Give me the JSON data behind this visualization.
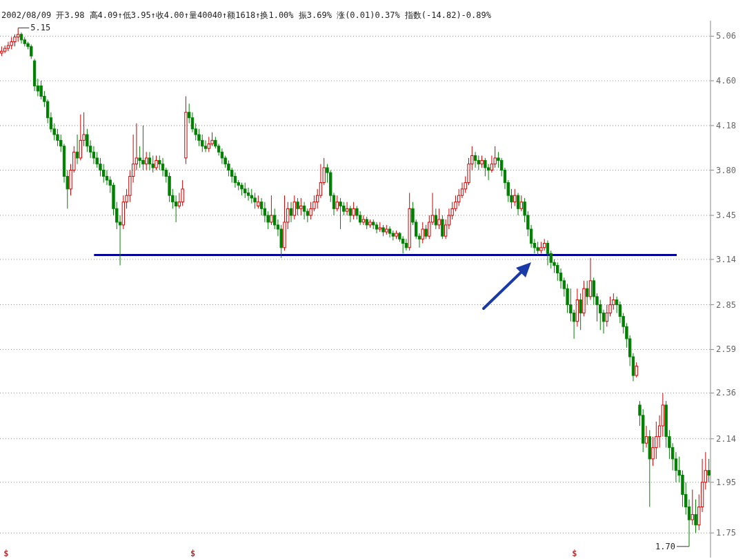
{
  "chart_data": {
    "type": "candlestick",
    "title": "2002/08/09 开3.98 高4.09↑低3.95↑收4.00↑量40040↑额1618↑换1.00% 振3.69% 涨(0.01)0.37% 指数(-14.82)-0.89%",
    "categories": [
      null,
      null,
      null,
      null,
      null,
      null,
      null,
      null,
      null,
      null,
      null,
      null,
      null,
      null,
      null,
      null,
      null,
      null,
      null,
      null,
      null,
      null,
      null,
      null,
      null,
      null,
      null,
      null,
      null,
      null,
      null,
      null,
      null,
      null,
      null,
      null,
      null,
      null,
      null,
      null,
      null,
      null,
      null,
      null,
      null,
      null,
      null,
      null,
      null,
      null,
      null,
      null,
      null,
      null,
      null,
      null,
      null,
      null,
      null,
      null,
      null,
      null,
      null,
      null,
      null,
      null,
      null,
      null,
      null,
      null,
      null,
      null,
      null,
      null,
      null,
      null,
      null,
      null,
      null,
      null,
      null,
      null,
      null,
      null,
      null,
      null,
      null,
      null,
      null,
      null,
      null,
      null,
      null,
      null,
      null,
      null,
      null,
      null,
      null,
      null,
      null,
      null,
      null,
      null,
      null,
      null,
      null,
      null,
      null,
      null,
      null,
      null,
      null,
      null,
      null,
      null,
      null,
      null,
      null,
      null,
      null,
      null,
      null,
      null,
      null,
      null,
      null,
      null,
      null,
      null,
      null,
      null,
      null,
      null,
      null,
      null,
      null,
      null,
      null,
      null,
      null,
      null,
      null,
      null,
      null,
      null,
      null,
      null,
      null,
      null,
      null,
      null,
      null,
      null,
      null,
      null,
      null,
      null,
      null,
      null,
      null,
      null,
      null,
      null,
      null,
      null,
      null,
      null,
      null,
      null,
      null,
      null,
      null,
      null,
      null,
      null,
      null,
      null,
      null,
      null,
      null,
      null,
      null,
      null,
      null,
      null,
      null,
      null,
      null,
      null,
      null,
      null,
      null,
      null,
      null,
      null,
      null,
      null,
      null,
      null,
      null,
      null,
      null,
      null,
      null,
      null,
      null,
      null,
      null,
      null,
      null,
      null,
      null,
      null,
      null,
      null
    ],
    "ohlc": [
      [
        4.88,
        4.95,
        4.85,
        4.9
      ],
      [
        4.9,
        4.96,
        4.88,
        4.93
      ],
      [
        4.93,
        5.0,
        4.9,
        4.96
      ],
      [
        4.96,
        5.05,
        4.92,
        5.0
      ],
      [
        5.0,
        5.08,
        4.95,
        5.05
      ],
      [
        5.05,
        5.15,
        5.0,
        5.08
      ],
      [
        5.08,
        5.1,
        4.98,
        5.02
      ],
      [
        5.02,
        5.05,
        4.95,
        4.98
      ],
      [
        4.98,
        5.0,
        4.92,
        4.95
      ],
      [
        4.95,
        4.97,
        4.82,
        4.85
      ],
      [
        4.8,
        4.82,
        4.5,
        4.55
      ],
      [
        4.55,
        4.62,
        4.45,
        4.5
      ],
      [
        4.55,
        4.6,
        4.42,
        4.45
      ],
      [
        4.45,
        4.5,
        4.35,
        4.4
      ],
      [
        4.4,
        4.42,
        4.2,
        4.25
      ],
      [
        4.25,
        4.3,
        4.12,
        4.15
      ],
      [
        4.15,
        4.2,
        4.05,
        4.1
      ],
      [
        4.1,
        4.15,
        4.0,
        4.05
      ],
      [
        4.05,
        4.1,
        3.95,
        4.0
      ],
      [
        4.0,
        4.02,
        3.7,
        3.75
      ],
      [
        3.75,
        3.8,
        3.5,
        3.65
      ],
      [
        3.65,
        3.85,
        3.6,
        3.8
      ],
      [
        3.8,
        4.0,
        3.78,
        3.95
      ],
      [
        3.95,
        4.1,
        3.85,
        3.9
      ],
      [
        3.9,
        4.28,
        3.88,
        4.05
      ],
      [
        4.05,
        4.3,
        4.0,
        4.1
      ],
      [
        4.1,
        4.15,
        3.95,
        4.0
      ],
      [
        4.0,
        4.05,
        3.9,
        3.95
      ],
      [
        3.95,
        4.0,
        3.85,
        3.9
      ],
      [
        3.9,
        3.95,
        3.82,
        3.85
      ],
      [
        3.85,
        3.9,
        3.75,
        3.8
      ],
      [
        3.8,
        3.85,
        3.7,
        3.75
      ],
      [
        3.75,
        3.8,
        3.68,
        3.72
      ],
      [
        3.72,
        3.75,
        3.62,
        3.68
      ],
      [
        3.68,
        3.7,
        3.45,
        3.5
      ],
      [
        3.5,
        3.55,
        3.35,
        3.4
      ],
      [
        3.4,
        3.45,
        3.1,
        3.38
      ],
      [
        3.38,
        3.6,
        3.35,
        3.55
      ],
      [
        3.55,
        3.65,
        3.5,
        3.6
      ],
      [
        3.6,
        3.8,
        3.55,
        3.75
      ],
      [
        3.75,
        4.1,
        3.7,
        3.85
      ],
      [
        3.85,
        4.2,
        3.8,
        3.9
      ],
      [
        3.9,
        4.0,
        3.82,
        3.88
      ],
      [
        3.88,
        4.18,
        3.8,
        3.85
      ],
      [
        3.85,
        3.95,
        3.8,
        3.9
      ],
      [
        3.9,
        3.95,
        3.8,
        3.85
      ],
      [
        3.85,
        3.92,
        3.78,
        3.82
      ],
      [
        3.82,
        3.92,
        3.8,
        3.88
      ],
      [
        3.88,
        3.92,
        3.8,
        3.85
      ],
      [
        3.85,
        3.9,
        3.75,
        3.8
      ],
      [
        3.8,
        3.82,
        3.7,
        3.75
      ],
      [
        3.75,
        3.78,
        3.55,
        3.6
      ],
      [
        3.6,
        3.65,
        3.5,
        3.55
      ],
      [
        3.55,
        3.6,
        3.4,
        3.52
      ],
      [
        3.52,
        3.62,
        3.5,
        3.55
      ],
      [
        3.55,
        3.72,
        3.52,
        3.65
      ],
      [
        3.9,
        4.45,
        3.85,
        4.3
      ],
      [
        4.3,
        4.38,
        4.2,
        4.25
      ],
      [
        4.25,
        4.3,
        4.12,
        4.15
      ],
      [
        4.15,
        4.2,
        4.05,
        4.1
      ],
      [
        4.1,
        4.15,
        4.0,
        4.05
      ],
      [
        4.05,
        4.1,
        3.95,
        4.0
      ],
      [
        4.0,
        4.05,
        3.95,
        3.98
      ],
      [
        3.98,
        4.08,
        3.95,
        4.02
      ],
      [
        4.02,
        4.12,
        4.0,
        4.05
      ],
      [
        4.05,
        4.08,
        3.98,
        4.0
      ],
      [
        4.0,
        4.02,
        3.92,
        3.95
      ],
      [
        3.95,
        3.98,
        3.85,
        3.9
      ],
      [
        3.9,
        3.92,
        3.82,
        3.85
      ],
      [
        3.85,
        3.88,
        3.75,
        3.8
      ],
      [
        3.8,
        3.82,
        3.7,
        3.75
      ],
      [
        3.75,
        3.78,
        3.66,
        3.7
      ],
      [
        3.7,
        3.72,
        3.64,
        3.68
      ],
      [
        3.68,
        3.7,
        3.6,
        3.65
      ],
      [
        3.65,
        3.7,
        3.58,
        3.62
      ],
      [
        3.62,
        3.66,
        3.56,
        3.6
      ],
      [
        3.6,
        3.65,
        3.54,
        3.58
      ],
      [
        3.58,
        3.62,
        3.5,
        3.55
      ],
      [
        3.52,
        3.6,
        3.5,
        3.55
      ],
      [
        3.55,
        3.58,
        3.45,
        3.5
      ],
      [
        3.5,
        3.55,
        3.4,
        3.45
      ],
      [
        3.45,
        3.48,
        3.35,
        3.4
      ],
      [
        3.4,
        3.6,
        3.38,
        3.45
      ],
      [
        3.45,
        3.5,
        3.35,
        3.38
      ],
      [
        3.38,
        3.42,
        3.3,
        3.35
      ],
      [
        3.35,
        3.38,
        3.15,
        3.22
      ],
      [
        3.22,
        3.6,
        3.2,
        3.4
      ],
      [
        3.4,
        3.55,
        3.35,
        3.5
      ],
      [
        3.5,
        3.55,
        3.4,
        3.45
      ],
      [
        3.45,
        3.6,
        3.42,
        3.55
      ],
      [
        3.55,
        3.58,
        3.45,
        3.5
      ],
      [
        3.5,
        3.58,
        3.45,
        3.52
      ],
      [
        3.52,
        3.55,
        3.42,
        3.48
      ],
      [
        3.48,
        3.5,
        3.4,
        3.45
      ],
      [
        3.45,
        3.55,
        3.42,
        3.5
      ],
      [
        3.5,
        3.6,
        3.48,
        3.55
      ],
      [
        3.55,
        3.65,
        3.5,
        3.6
      ],
      [
        3.6,
        3.85,
        3.58,
        3.7
      ],
      [
        3.7,
        3.9,
        3.68,
        3.82
      ],
      [
        3.82,
        3.85,
        3.7,
        3.78
      ],
      [
        3.78,
        3.8,
        3.55,
        3.6
      ],
      [
        3.6,
        3.62,
        3.45,
        3.5
      ],
      [
        3.5,
        3.6,
        3.48,
        3.55
      ],
      [
        3.55,
        3.58,
        3.35,
        3.52
      ],
      [
        3.52,
        3.55,
        3.45,
        3.48
      ],
      [
        3.48,
        3.55,
        3.45,
        3.5
      ],
      [
        3.5,
        3.52,
        3.4,
        3.45
      ],
      [
        3.45,
        3.55,
        3.42,
        3.5
      ],
      [
        3.5,
        3.52,
        3.42,
        3.45
      ],
      [
        3.45,
        3.48,
        3.38,
        3.4
      ],
      [
        3.4,
        3.45,
        3.38,
        3.42
      ],
      [
        3.42,
        3.44,
        3.35,
        3.38
      ],
      [
        3.38,
        3.42,
        3.36,
        3.4
      ],
      [
        3.4,
        3.42,
        3.35,
        3.38
      ],
      [
        3.38,
        3.4,
        3.32,
        3.35
      ],
      [
        3.35,
        3.4,
        3.33,
        3.36
      ],
      [
        3.36,
        3.38,
        3.3,
        3.33
      ],
      [
        3.33,
        3.38,
        3.31,
        3.35
      ],
      [
        3.35,
        3.37,
        3.29,
        3.32
      ],
      [
        3.32,
        3.34,
        3.27,
        3.3
      ],
      [
        3.3,
        3.34,
        3.28,
        3.32
      ],
      [
        3.32,
        3.33,
        3.26,
        3.28
      ],
      [
        3.28,
        3.3,
        3.18,
        3.25
      ],
      [
        3.25,
        3.28,
        3.2,
        3.22
      ],
      [
        3.22,
        3.62,
        3.2,
        3.5
      ],
      [
        3.5,
        3.55,
        3.38,
        3.4
      ],
      [
        3.4,
        3.42,
        3.28,
        3.3
      ],
      [
        3.3,
        3.32,
        3.22,
        3.28
      ],
      [
        3.28,
        3.4,
        3.25,
        3.35
      ],
      [
        3.35,
        3.38,
        3.28,
        3.3
      ],
      [
        3.3,
        3.45,
        3.28,
        3.4
      ],
      [
        3.4,
        3.62,
        3.38,
        3.45
      ],
      [
        3.45,
        3.5,
        3.35,
        3.38
      ],
      [
        3.38,
        3.5,
        3.35,
        3.42
      ],
      [
        3.42,
        3.45,
        3.28,
        3.3
      ],
      [
        3.3,
        3.42,
        3.28,
        3.38
      ],
      [
        3.38,
        3.5,
        3.35,
        3.45
      ],
      [
        3.45,
        3.55,
        3.42,
        3.5
      ],
      [
        3.5,
        3.6,
        3.48,
        3.55
      ],
      [
        3.55,
        3.65,
        3.52,
        3.6
      ],
      [
        3.6,
        3.7,
        3.58,
        3.65
      ],
      [
        3.65,
        3.75,
        3.62,
        3.7
      ],
      [
        3.7,
        3.9,
        3.68,
        3.85
      ],
      [
        3.85,
        4.0,
        3.8,
        3.92
      ],
      [
        3.92,
        3.95,
        3.82,
        3.88
      ],
      [
        3.88,
        3.92,
        3.8,
        3.85
      ],
      [
        3.85,
        3.92,
        3.82,
        3.88
      ],
      [
        3.88,
        3.9,
        3.75,
        3.82
      ],
      [
        3.82,
        3.85,
        3.72,
        3.8
      ],
      [
        3.8,
        3.92,
        3.78,
        3.85
      ],
      [
        3.85,
        4.0,
        3.82,
        3.9
      ],
      [
        3.9,
        3.95,
        3.82,
        3.88
      ],
      [
        3.88,
        3.9,
        3.75,
        3.8
      ],
      [
        3.8,
        3.82,
        3.65,
        3.7
      ],
      [
        3.7,
        3.72,
        3.55,
        3.6
      ],
      [
        3.6,
        3.65,
        3.5,
        3.55
      ],
      [
        3.55,
        3.65,
        3.52,
        3.6
      ],
      [
        3.6,
        3.62,
        3.45,
        3.5
      ],
      [
        3.5,
        3.6,
        3.48,
        3.55
      ],
      [
        3.55,
        3.58,
        3.4,
        3.45
      ],
      [
        3.45,
        3.48,
        3.3,
        3.35
      ],
      [
        3.35,
        3.38,
        3.22,
        3.25
      ],
      [
        3.25,
        3.28,
        3.18,
        3.22
      ],
      [
        3.22,
        3.26,
        3.17,
        3.2
      ],
      [
        3.2,
        3.26,
        3.18,
        3.22
      ],
      [
        3.22,
        3.28,
        3.2,
        3.25
      ],
      [
        3.25,
        3.27,
        3.1,
        3.18
      ],
      [
        3.18,
        3.2,
        3.08,
        3.12
      ],
      [
        3.12,
        3.14,
        3.05,
        3.1
      ],
      [
        3.1,
        3.12,
        3.0,
        3.05
      ],
      [
        3.05,
        3.08,
        2.95,
        3.0
      ],
      [
        3.0,
        3.02,
        2.9,
        2.95
      ],
      [
        2.95,
        2.98,
        2.8,
        2.85
      ],
      [
        2.85,
        2.95,
        2.75,
        2.8
      ],
      [
        2.8,
        2.82,
        2.65,
        2.75
      ],
      [
        2.75,
        2.95,
        2.72,
        2.88
      ],
      [
        2.88,
        2.92,
        2.7,
        2.8
      ],
      [
        2.8,
        3.0,
        2.78,
        2.95
      ],
      [
        2.95,
        3.0,
        2.85,
        2.9
      ],
      [
        2.9,
        3.15,
        2.88,
        3.0
      ],
      [
        3.0,
        3.02,
        2.85,
        2.9
      ],
      [
        2.9,
        2.92,
        2.75,
        2.85
      ],
      [
        2.85,
        2.88,
        2.7,
        2.8
      ],
      [
        2.8,
        2.82,
        2.68,
        2.75
      ],
      [
        2.75,
        2.85,
        2.72,
        2.8
      ],
      [
        2.8,
        2.9,
        2.78,
        2.85
      ],
      [
        2.85,
        2.92,
        2.82,
        2.88
      ],
      [
        2.88,
        2.9,
        2.8,
        2.85
      ],
      [
        2.85,
        2.87,
        2.74,
        2.78
      ],
      [
        2.78,
        2.8,
        2.68,
        2.72
      ],
      [
        2.72,
        2.74,
        2.6,
        2.65
      ],
      [
        2.65,
        2.67,
        2.5,
        2.55
      ],
      [
        2.55,
        2.57,
        2.42,
        2.45
      ],
      [
        2.45,
        2.52,
        2.44,
        2.5
      ],
      [
        2.3,
        2.32,
        2.2,
        2.25
      ],
      [
        2.25,
        2.28,
        2.08,
        2.12
      ],
      [
        2.12,
        2.2,
        2.1,
        2.15
      ],
      [
        2.15,
        2.18,
        1.85,
        2.05
      ],
      [
        2.05,
        2.15,
        2.02,
        2.1
      ],
      [
        2.1,
        2.22,
        2.05,
        2.15
      ],
      [
        2.15,
        2.25,
        2.1,
        2.2
      ],
      [
        2.2,
        2.36,
        2.15,
        2.3
      ],
      [
        2.3,
        2.32,
        2.1,
        2.15
      ],
      [
        2.15,
        2.18,
        2.05,
        2.1
      ],
      [
        2.1,
        2.12,
        2.0,
        2.05
      ],
      [
        2.05,
        2.08,
        1.95,
        2.0
      ],
      [
        2.0,
        2.06,
        1.95,
        1.98
      ],
      [
        1.98,
        2.0,
        1.85,
        1.9
      ],
      [
        1.9,
        1.95,
        1.82,
        1.85
      ],
      [
        1.85,
        1.88,
        1.7,
        1.8
      ],
      [
        1.8,
        1.92,
        1.78,
        1.82
      ],
      [
        1.82,
        1.88,
        1.75,
        1.78
      ],
      [
        1.78,
        1.9,
        1.76,
        1.85
      ],
      [
        1.85,
        2.05,
        1.83,
        1.95
      ],
      [
        1.95,
        2.08,
        1.92,
        2.0
      ],
      [
        2.0,
        2.05,
        1.95,
        1.98
      ]
    ],
    "colors": [
      "#d00000",
      "#d00000",
      "#d00000",
      "#d00000",
      "#d00000",
      "#d00000",
      "#008000",
      "#008000",
      "#008000",
      "#008000",
      "#008000",
      "#008000",
      "#008000",
      "#008000",
      "#008000",
      "#008000",
      "#008000",
      "#008000",
      "#008000",
      "#008000",
      "#008000",
      "#d00000",
      "#d00000",
      "#008000",
      "#d00000",
      "#d00000",
      "#008000",
      "#008000",
      "#008000",
      "#008000",
      "#008000",
      "#008000",
      "#008000",
      "#008000",
      "#008000",
      "#008000",
      "#008000",
      "#d00000",
      "#d00000",
      "#d00000",
      "#d00000",
      "#d00000",
      "#008000",
      "#008000",
      "#d00000",
      "#008000",
      "#008000",
      "#d00000",
      "#008000",
      "#008000",
      "#008000",
      "#008000",
      "#008000",
      "#008000",
      "#d00000",
      "#d00000",
      "#d00000",
      "#008000",
      "#008000",
      "#008000",
      "#008000",
      "#008000",
      "#008000",
      "#d00000",
      "#d00000",
      "#008000",
      "#008000",
      "#008000",
      "#008000",
      "#008000",
      "#008000",
      "#008000",
      "#008000",
      "#008000",
      "#008000",
      "#008000",
      "#008000",
      "#008000",
      "#d00000",
      "#008000",
      "#008000",
      "#008000",
      "#d00000",
      "#008000",
      "#008000",
      "#008000",
      "#d00000",
      "#d00000",
      "#008000",
      "#d00000",
      "#008000",
      "#d00000",
      "#008000",
      "#008000",
      "#d00000",
      "#d00000",
      "#d00000",
      "#d00000",
      "#d00000",
      "#008000",
      "#008000",
      "#008000",
      "#d00000",
      "#008000",
      "#008000",
      "#d00000",
      "#008000",
      "#d00000",
      "#008000",
      "#008000",
      "#d00000",
      "#008000",
      "#d00000",
      "#008000",
      "#008000",
      "#d00000",
      "#008000",
      "#d00000",
      "#008000",
      "#008000",
      "#d00000",
      "#008000",
      "#008000",
      "#008000",
      "#d00000",
      "#008000",
      "#008000",
      "#008000",
      "#d00000",
      "#008000",
      "#d00000",
      "#d00000",
      "#008000",
      "#d00000",
      "#008000",
      "#d00000",
      "#d00000",
      "#d00000",
      "#d00000",
      "#d00000",
      "#d00000",
      "#d00000",
      "#d00000",
      "#d00000",
      "#008000",
      "#008000",
      "#d00000",
      "#008000",
      "#008000",
      "#d00000",
      "#d00000",
      "#008000",
      "#008000",
      "#008000",
      "#008000",
      "#008000",
      "#d00000",
      "#008000",
      "#d00000",
      "#008000",
      "#008000",
      "#008000",
      "#008000",
      "#008000",
      "#d00000",
      "#d00000",
      "#008000",
      "#008000",
      "#008000",
      "#008000",
      "#008000",
      "#008000",
      "#008000",
      "#008000",
      "#008000",
      "#d00000",
      "#008000",
      "#d00000",
      "#008000",
      "#d00000",
      "#008000",
      "#008000",
      "#008000",
      "#008000",
      "#d00000",
      "#d00000",
      "#d00000",
      "#008000",
      "#008000",
      "#008000",
      "#008000",
      "#008000",
      "#008000",
      "#d00000",
      "#008000",
      "#008000",
      "#d00000",
      "#008000",
      "#d00000",
      "#d00000",
      "#d00000",
      "#d00000",
      "#008000",
      "#008000",
      "#008000",
      "#008000",
      "#008000",
      "#008000",
      "#008000",
      "#008000",
      "#d00000",
      "#008000",
      "#d00000",
      "#d00000",
      "#d00000",
      "#008000"
    ],
    "log": "y",
    "ylim": [
      1.66,
      5.23
    ],
    "yticks": [
      5.06,
      {
        "value": 4.6,
        "label": "4.60"
      },
      4.18,
      {
        "value": 3.8,
        "label": "3.80"
      },
      3.45,
      3.14,
      2.85,
      2.59,
      2.36,
      2.14,
      1.95,
      1.75
    ],
    "grid": "y",
    "ref_lines": [
      {
        "axis": "y",
        "value": 3.17,
        "color": "#000099"
      }
    ],
    "annotations": [
      "5.15",
      "1.70",
      "$",
      "$",
      "$"
    ]
  }
}
